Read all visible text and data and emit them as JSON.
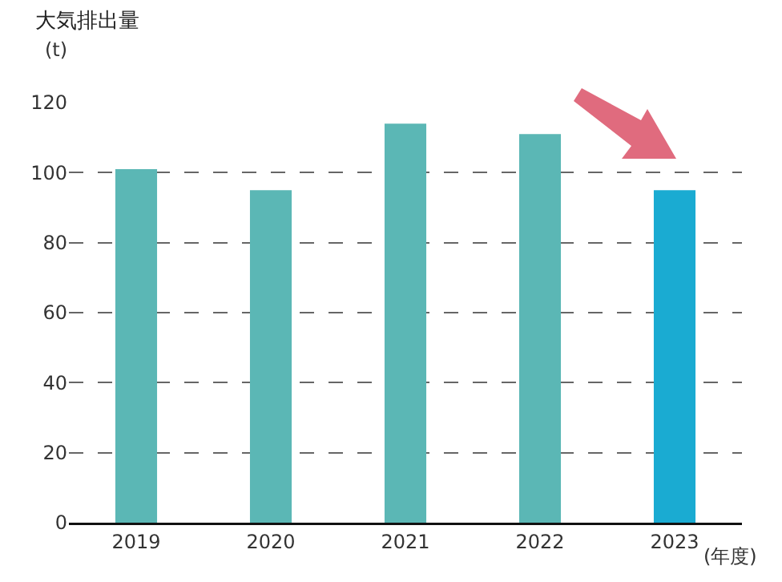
{
  "chart_data": {
    "type": "bar",
    "title": "大気排出量",
    "ylabel": "(t)",
    "xlabel": "(年度)",
    "categories": [
      "2019",
      "2020",
      "2021",
      "2022",
      "2023"
    ],
    "values": [
      101,
      95,
      114,
      111,
      95
    ],
    "colors": [
      "#5bb7b5",
      "#5bb7b5",
      "#5bb7b5",
      "#5bb7b5",
      "#1aabd2"
    ],
    "ylim": [
      0,
      120
    ],
    "yticks": [
      0,
      20,
      40,
      60,
      80,
      100,
      120
    ],
    "grid": "y"
  }
}
